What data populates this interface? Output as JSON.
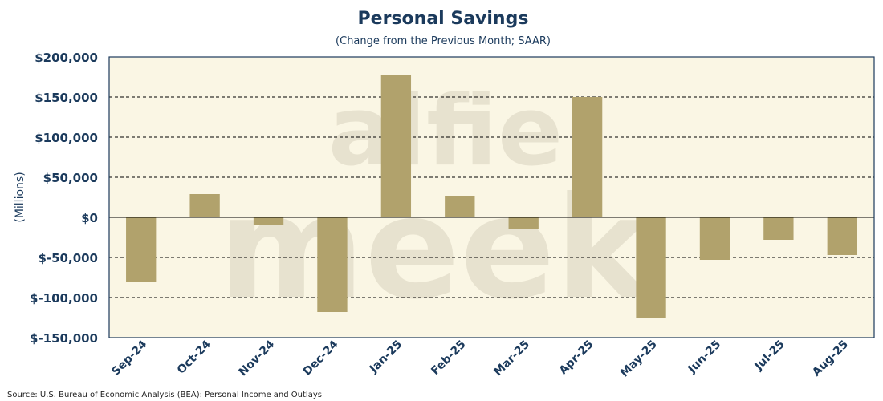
{
  "colors": {
    "plot_bg": "#faf6e4",
    "bar": "#b1a26c",
    "text": "#1b3a5c",
    "border": "#1b3a5c",
    "grid": "#000000"
  },
  "watermark": {
    "line1": "alfie",
    "line2": "meek"
  },
  "chart_data": {
    "type": "bar",
    "title": "Personal Savings",
    "subtitle": "(Change from the Previous Month; SAAR)",
    "xlabel": "",
    "ylabel": "(Millions)",
    "categories": [
      "Sep-24",
      "Oct-24",
      "Nov-24",
      "Dec-24",
      "Jan-25",
      "Feb-25",
      "Mar-25",
      "Apr-25",
      "May-25",
      "Jun-25",
      "Jul-25",
      "Aug-25"
    ],
    "values": [
      -80000,
      29000,
      -10000,
      -118000,
      178000,
      27000,
      -14000,
      150000,
      -126000,
      -53000,
      -28000,
      -47000
    ],
    "ylim": [
      -150000,
      200000
    ],
    "yticks": [
      -150000,
      -100000,
      -50000,
      0,
      50000,
      100000,
      150000,
      200000
    ],
    "ytick_labels": [
      "$-150,000",
      "$-100,000",
      "$-50,000",
      "$0",
      "$50,000",
      "$100,000",
      "$150,000",
      "$200,000"
    ],
    "grid": "horizontal dashed",
    "legend": "none"
  },
  "source": "Source: U.S. Bureau of Economic Analysis (BEA): Personal Income and Outlays"
}
